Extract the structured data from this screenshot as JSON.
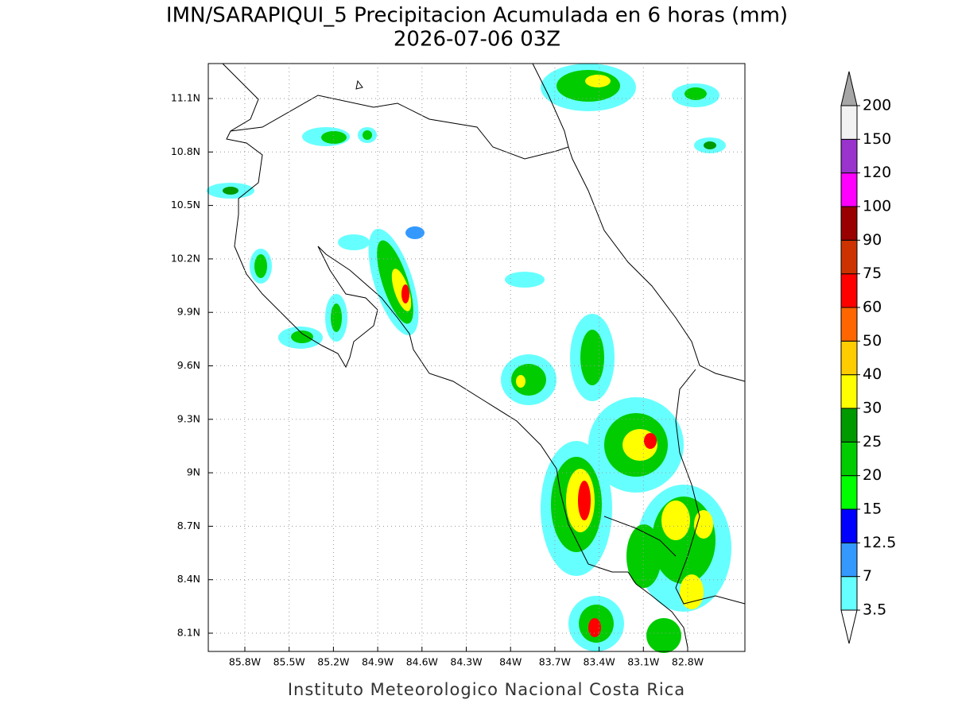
{
  "title": "IMN/SARAPIQUI_5 Precipitacion Acumulada en 6 horas (mm)",
  "subtitle": "2026-07-06 03Z",
  "footer": "Instituto Meteorologico Nacional Costa Rica",
  "map": {
    "lon_ticks": [
      "85.8W",
      "85.5W",
      "85.2W",
      "84.9W",
      "84.6W",
      "84.3W",
      "84W",
      "83.7W",
      "83.4W",
      "83.1W",
      "82.8W"
    ],
    "lat_ticks": [
      "11.1N",
      "10.8N",
      "10.5N",
      "10.2N",
      "9.9N",
      "9.6N",
      "9.3N",
      "9N",
      "8.7N",
      "8.4N",
      "8.1N"
    ],
    "grid": true
  },
  "colorbar": {
    "levels": [
      3.5,
      7,
      12.5,
      15,
      20,
      25,
      30,
      40,
      50,
      60,
      75,
      90,
      100,
      120,
      150,
      200
    ],
    "colors": [
      "#ffffff",
      "#66ffff",
      "#3399ff",
      "#0000ff",
      "#00ff00",
      "#00cc00",
      "#009900",
      "#ffff00",
      "#ffcc00",
      "#ff6600",
      "#ff0000",
      "#cc3300",
      "#990000",
      "#ff00ff",
      "#9933cc",
      "#f2f2f2",
      "#a6a6a6"
    ]
  }
}
